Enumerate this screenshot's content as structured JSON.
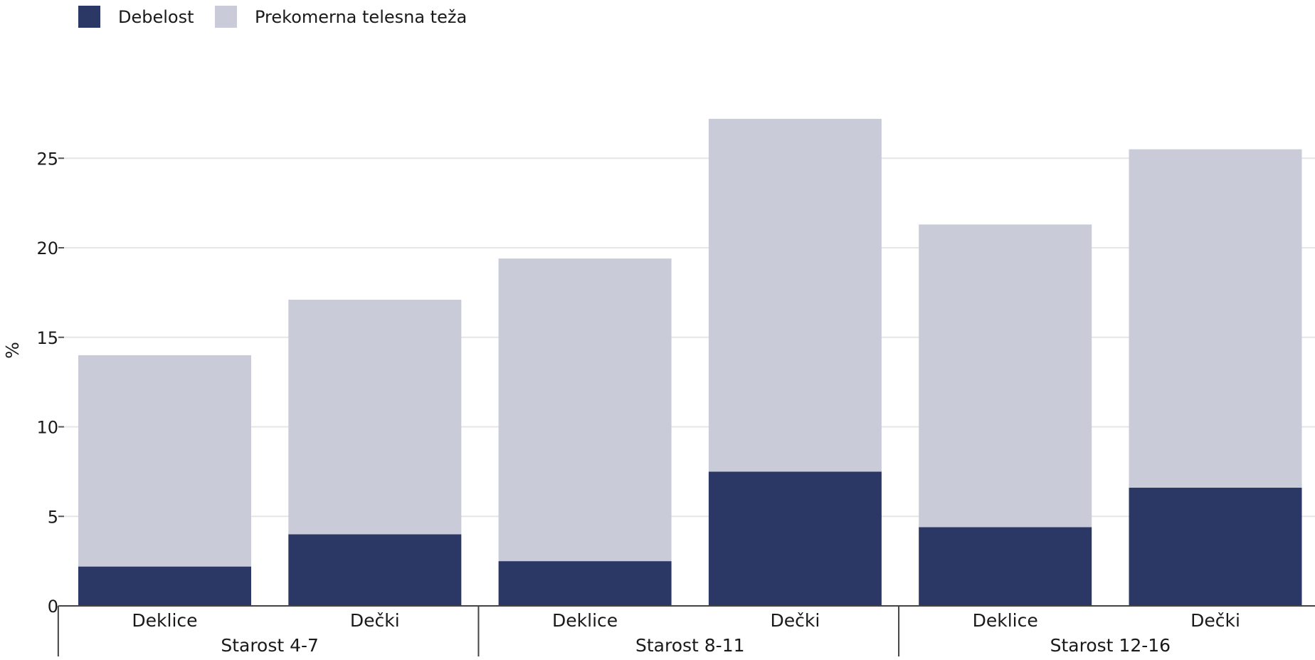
{
  "chart_data": {
    "type": "bar",
    "stacked": true,
    "groups": [
      "Starost 4-7",
      "Starost 8-11",
      "Starost 12-16"
    ],
    "categories": [
      "Deklice",
      "Dečki",
      "Deklice",
      "Dečki",
      "Deklice",
      "Dečki"
    ],
    "series": [
      {
        "name": "Debelost",
        "color": "#2b3764",
        "values": [
          2.2,
          4.0,
          2.5,
          7.5,
          4.4,
          6.6
        ]
      },
      {
        "name": "Prekomerna telesna teža",
        "color": "#c9cbd8",
        "values": [
          11.8,
          13.1,
          16.9,
          19.7,
          16.9,
          18.9
        ]
      }
    ],
    "ylabel": "%",
    "ylim": [
      0,
      30
    ],
    "yticks": [
      0,
      5,
      10,
      15,
      20,
      25
    ],
    "grid": true,
    "legend_position": "top-left"
  }
}
